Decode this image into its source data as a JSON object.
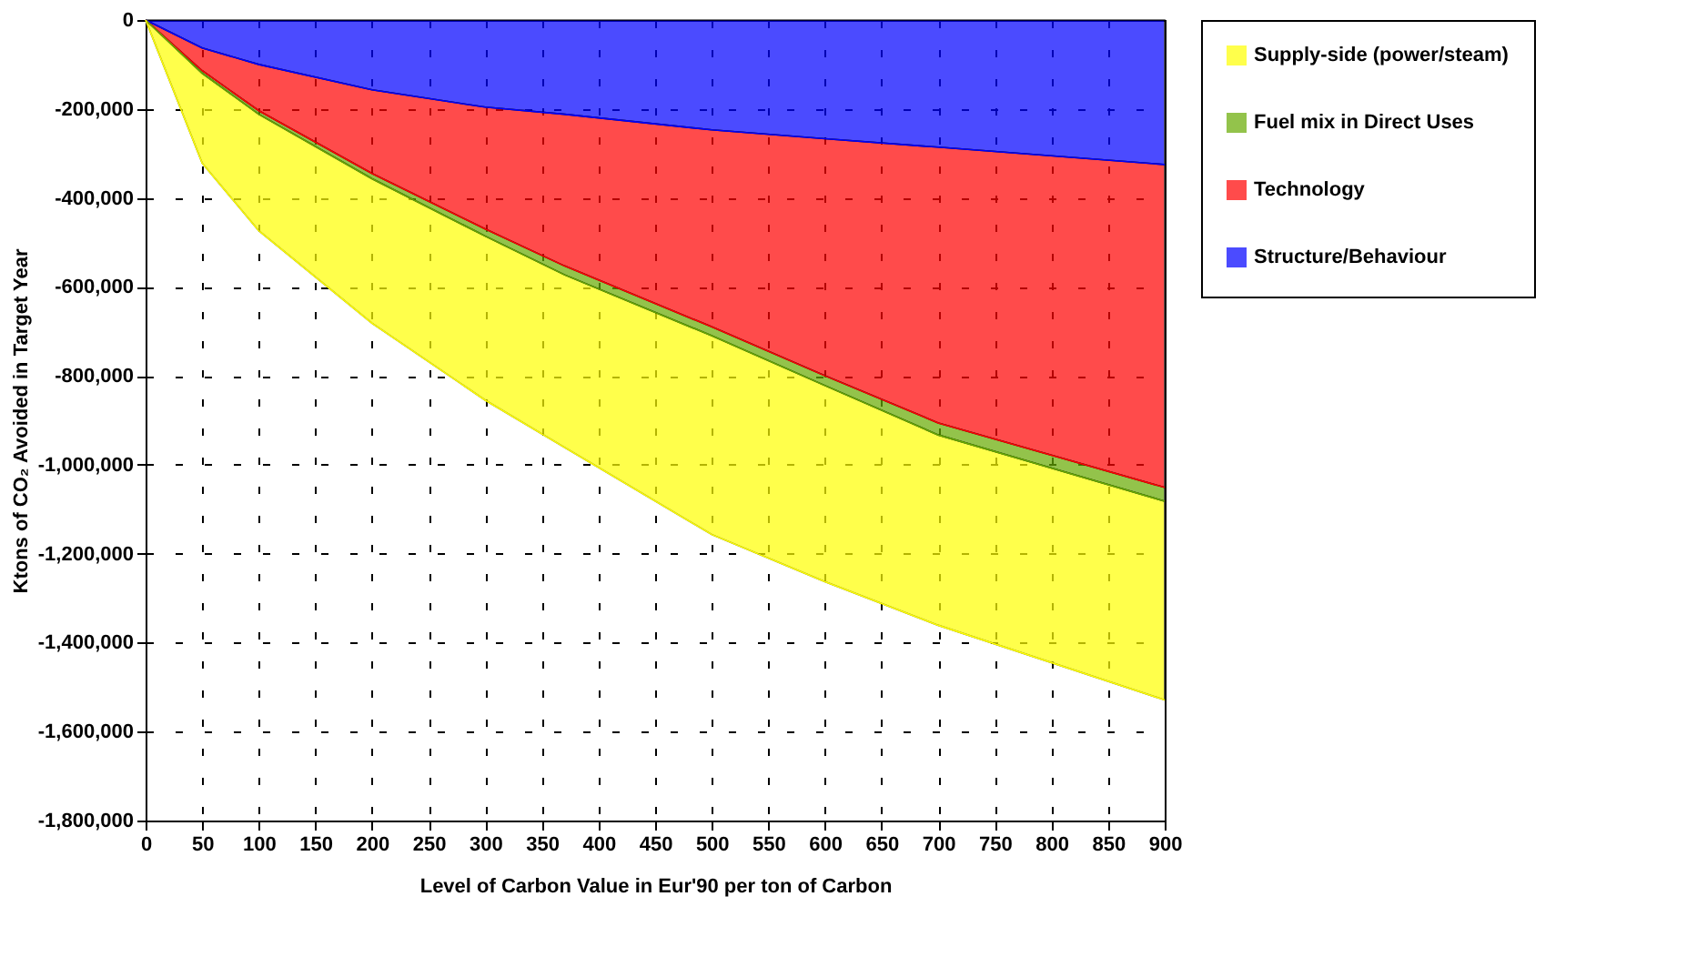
{
  "chart_data": {
    "type": "area",
    "stacked": true,
    "xlabel": "Level of Carbon Value in Eur'90 per ton of Carbon",
    "ylabel": "Ktons of CO₂ Avoided in Target Year",
    "x": [
      0,
      50,
      100,
      200,
      300,
      370,
      500,
      600,
      700,
      900
    ],
    "series": [
      {
        "name": "Structure/Behaviour",
        "color": "#0000ff",
        "values": [
          0,
          -63000,
          -100000,
          -157000,
          -196000,
          -212000,
          -247000,
          -267000,
          -286000,
          -325000
        ]
      },
      {
        "name": "Technology",
        "color": "#ff0000",
        "values": [
          0,
          -51000,
          -104000,
          -188000,
          -274000,
          -341000,
          -443000,
          -533000,
          -620000,
          -726000
        ]
      },
      {
        "name": "Fuel mix in Direct Uses",
        "color": "#66aa00",
        "values": [
          0,
          -6000,
          -8000,
          -12000,
          -16000,
          -20000,
          -20000,
          -22000,
          -27000,
          -31000
        ]
      },
      {
        "name": "Supply-side (power/steam)",
        "color": "#ffff00",
        "values": [
          0,
          -202000,
          -262000,
          -325000,
          -369000,
          -388000,
          -447000,
          -441000,
          -428000,
          -447000
        ]
      }
    ],
    "xlim": [
      0,
      900
    ],
    "xticks": [
      0,
      50,
      100,
      150,
      200,
      250,
      300,
      350,
      400,
      450,
      500,
      550,
      600,
      650,
      700,
      750,
      800,
      850,
      900
    ],
    "ylim": [
      -1800000,
      0
    ],
    "yticks": [
      {
        "value": -1800000,
        "label": "-1,800,000"
      },
      {
        "value": -1600000,
        "label": "-1,600,000"
      },
      {
        "value": -1400000,
        "label": "-1,400,000"
      },
      {
        "value": -1200000,
        "label": "-1,200,000"
      },
      {
        "value": -1000000,
        "label": "-1,000,000"
      },
      {
        "value": -800000,
        "label": "-800,000"
      },
      {
        "value": -600000,
        "label": "-600,000"
      },
      {
        "value": -400000,
        "label": "-400,000"
      },
      {
        "value": -200000,
        "label": "-200,000"
      },
      0
    ],
    "grid": true,
    "legend": "right"
  }
}
